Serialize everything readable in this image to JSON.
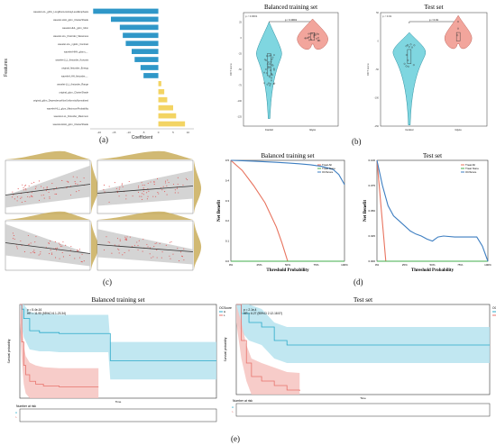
{
  "captions": {
    "a": "(a)",
    "b": "(b)",
    "c": "(c)",
    "d": "(d)",
    "e": "(e)"
  },
  "chart_data": [
    {
      "id": "a",
      "type": "bar",
      "orientation": "horizontal",
      "ylabel": "Features",
      "xlabel": "Coefficient",
      "categories": [
        "wavelet-LLL_glrlm_LongRunLowGrayLevelEmphasis",
        "wavelet-LHH_glcm_ClusterShade",
        "wavelet-HHL_glcm_Idmn",
        "wavelet-LLL_firstorder_Skewness",
        "wavelet-LLL_ngtdm_Contrast",
        "wavelet-HHH_glszm_...",
        "wavelet-LLL_firstorder_Kurtosis",
        "original_firstorder_Energy",
        "wavelet-LHH_firstorder_...",
        "wavelet-LLL_firstorder_Range",
        "original_glcm_ClusterShade",
        "original_gldm_DependenceNonUniformityNormalized",
        "wavelet-HLL_glcm_MaximumProbability",
        "wavelet-LLL_firstorder_Maximum",
        "wavelet-HHH_glcm_ClusterShade"
      ],
      "values": [
        -22,
        -16,
        -13,
        -12,
        -11,
        -9,
        -8,
        -6,
        -5,
        1,
        2,
        3,
        5,
        6,
        9
      ],
      "xticks": [
        -20,
        -15,
        -10,
        -5,
        0,
        5,
        10
      ],
      "xlim": [
        -23,
        12
      ],
      "colors": {
        "negative": "#2f97c8",
        "positive": "#f3d463"
      }
    },
    {
      "id": "b1",
      "type": "violin",
      "title": "Balanced training set",
      "categories": [
        "Control",
        "Glyco"
      ],
      "pvalue": "p < 0.0001",
      "comparison": "p < 0.0001",
      "ylabel": "OCT score",
      "ylim": [
        -140,
        40
      ],
      "yticks": [
        -125,
        -100,
        -75,
        -50,
        -25,
        0,
        25
      ],
      "colors": {
        "Control": "#7fd6e0",
        "Glyco": "#f2a59c"
      }
    },
    {
      "id": "b2",
      "type": "violin",
      "title": "Test set",
      "categories": [
        "Control",
        "Glyco"
      ],
      "pvalue": "p < 0.01",
      "comparison": "p < 0.01",
      "ylabel": "OCT score",
      "ylim": [
        -150,
        50
      ],
      "yticks": [
        -150,
        -100,
        -50,
        0,
        50
      ],
      "colors": {
        "Control": "#7fd6e0",
        "Glyco": "#f2a59c"
      }
    },
    {
      "id": "c",
      "type": "scatter",
      "panels": 4,
      "colors": {
        "points": "#e05656",
        "band": "#cfcfcf",
        "marginal": "#c9ad5a"
      }
    },
    {
      "id": "d1",
      "type": "line",
      "title": "Balanced training set",
      "xlabel": "Threshold Probability",
      "ylabel": "Net Benefit",
      "xticks": [
        "0%",
        "25%",
        "50%",
        "75%",
        "100%"
      ],
      "yticks": [
        "0.0",
        "0.1",
        "0.2",
        "0.3",
        "0.4",
        "0.5"
      ],
      "legend": [
        "Treat All",
        "Treat None",
        "OCScore"
      ],
      "legend_position": "top-right",
      "series": [
        {
          "name": "Treat All",
          "color": "#e8735e",
          "x": [
            0,
            0.1,
            0.2,
            0.3,
            0.4,
            0.45,
            0.5
          ],
          "y": [
            0.5,
            0.45,
            0.375,
            0.29,
            0.17,
            0.09,
            0.0
          ]
        },
        {
          "name": "Treat None",
          "color": "#41ad4b",
          "x": [
            0,
            1
          ],
          "y": [
            0,
            0
          ]
        },
        {
          "name": "OCScore",
          "color": "#3d7ec1",
          "x": [
            0,
            0.1,
            0.2,
            0.3,
            0.4,
            0.5,
            0.6,
            0.7,
            0.8,
            0.9,
            0.95,
            1
          ],
          "y": [
            0.5,
            0.498,
            0.496,
            0.493,
            0.49,
            0.487,
            0.483,
            0.478,
            0.47,
            0.455,
            0.43,
            0.38
          ]
        }
      ]
    },
    {
      "id": "d2",
      "type": "line",
      "title": "Test set",
      "xlabel": "Threshold Probability",
      "ylabel": "Net Benefit",
      "xticks": [
        "0%",
        "25%",
        "50%",
        "75%",
        "100%"
      ],
      "yticks": [
        "0.000",
        "0.025",
        "0.050",
        "0.075",
        "0.100"
      ],
      "legend": [
        "Treat All",
        "Treat None",
        "OCScore"
      ],
      "legend_position": "top-right",
      "series": [
        {
          "name": "Treat All",
          "color": "#e8735e",
          "x": [
            0,
            0.02,
            0.04,
            0.06,
            0.08
          ],
          "y": [
            0.1,
            0.075,
            0.05,
            0.025,
            0.0
          ]
        },
        {
          "name": "Treat None",
          "color": "#41ad4b",
          "x": [
            0,
            1
          ],
          "y": [
            0,
            0
          ]
        },
        {
          "name": "OCScore",
          "color": "#3d7ec1",
          "x": [
            0,
            0.05,
            0.1,
            0.15,
            0.2,
            0.25,
            0.3,
            0.35,
            0.4,
            0.45,
            0.5,
            0.55,
            0.6,
            0.7,
            0.8,
            0.9,
            0.95,
            1
          ],
          "y": [
            0.1,
            0.075,
            0.055,
            0.045,
            0.04,
            0.035,
            0.03,
            0.027,
            0.025,
            0.022,
            0.02,
            0.024,
            0.025,
            0.024,
            0.024,
            0.024,
            0.015,
            0.0
          ]
        }
      ]
    },
    {
      "id": "e1",
      "type": "line",
      "subtype": "survival",
      "title": "Balanced training set",
      "xlabel": "Time",
      "ylabel": "Survival probability",
      "pvalue": "p = 5.4e-16",
      "hr": "HR = 11.95 (95%CI 6.1-23.34)",
      "legend_title": "OCScore",
      "legend": [
        "H",
        "L"
      ],
      "risk_table_title": "Number at risk",
      "series": [
        {
          "name": "H",
          "color": "#2aa9c9",
          "band": "#b6e3ef",
          "x": [
            0,
            1,
            2,
            5,
            10,
            15,
            20,
            45,
            46,
            60,
            75,
            100
          ],
          "y": [
            1.0,
            0.95,
            0.85,
            0.72,
            0.7,
            0.7,
            0.69,
            0.69,
            0.4,
            0.4,
            0.4,
            0.4
          ]
        },
        {
          "name": "L",
          "color": "#e8736c",
          "band": "#f6c3c0",
          "x": [
            0,
            1,
            2,
            3,
            5,
            8,
            12,
            20,
            40
          ],
          "y": [
            1.0,
            0.6,
            0.35,
            0.25,
            0.18,
            0.15,
            0.13,
            0.12,
            0.12
          ]
        }
      ]
    },
    {
      "id": "e2",
      "type": "line",
      "subtype": "survival",
      "title": "Test set",
      "xlabel": "Time",
      "ylabel": "Survival probability",
      "pvalue": "p = 2.1e-4",
      "hr": "HR = 6.27 (95%CI 2.12-18.57)",
      "legend_title": "OCScore",
      "legend": [
        "H",
        "L"
      ],
      "risk_table_title": "Number at risk",
      "series": [
        {
          "name": "H",
          "color": "#2aa9c9",
          "band": "#b6e3ef",
          "x": [
            0,
            2,
            5,
            10,
            15,
            20,
            30,
            100
          ],
          "y": [
            1.0,
            0.9,
            0.8,
            0.75,
            0.6,
            0.55,
            0.55,
            0.55
          ]
        },
        {
          "name": "L",
          "color": "#e8736c",
          "band": "#f6c3c0",
          "x": [
            0,
            2,
            4,
            6,
            10,
            15,
            20,
            25
          ],
          "y": [
            1.0,
            0.6,
            0.35,
            0.2,
            0.15,
            0.1,
            0.05,
            0.04
          ]
        }
      ]
    }
  ]
}
